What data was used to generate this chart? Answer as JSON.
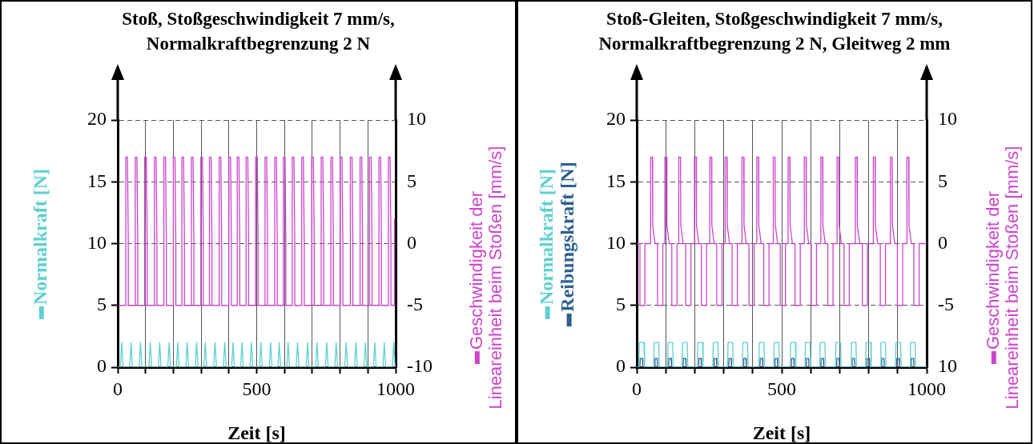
{
  "chart_data": [
    {
      "type": "line",
      "title": "Stoß, Stoßgeschwindigkeit 7 mm/s, Normalkraftbegrenzung 2 N",
      "xlabel": "Zeit [s]",
      "legend": "left",
      "marker": "none",
      "grid": true,
      "xlim": [
        0,
        1000
      ],
      "xticks": [
        0,
        {
          "value": 100,
          "label": null
        },
        {
          "value": 200,
          "label": null
        },
        {
          "value": 300,
          "label": null
        },
        {
          "value": 400,
          "label": null
        },
        500,
        {
          "value": 600,
          "label": null
        },
        {
          "value": 700,
          "label": null
        },
        {
          "value": 800,
          "label": null
        },
        {
          "value": 900,
          "label": null
        },
        1000
      ],
      "ylim": [
        0,
        20
      ],
      "yticks": [
        0,
        5,
        10,
        15,
        20
      ],
      "y2lim": [
        -10,
        10
      ],
      "y2ticks": [
        -10,
        -5,
        0,
        5,
        10
      ],
      "series": [
        {
          "name": "Normalkraft  [N]",
          "color": "#5fd0d0",
          "x": [
            0,
            9,
            14,
            19,
            43,
            48,
            53,
            77,
            82,
            87,
            112,
            117,
            122,
            146,
            151,
            156,
            180,
            185,
            190,
            211,
            216,
            221,
            245,
            250,
            255,
            279,
            284,
            289,
            310,
            315,
            320,
            345,
            350,
            355,
            380,
            385,
            390,
            410,
            415,
            420,
            442,
            447,
            452,
            476,
            481,
            486,
            510,
            515,
            520,
            545,
            550,
            555,
            576,
            581,
            586,
            608,
            613,
            618,
            642,
            647,
            652,
            678,
            683,
            688,
            712,
            717,
            722,
            747,
            752,
            757,
            781,
            786,
            791,
            817,
            822,
            827,
            852,
            857,
            862,
            886,
            891,
            896,
            920,
            925,
            930,
            954,
            959,
            964,
            988,
            993,
            998
          ],
          "values": [
            0,
            0,
            2,
            0,
            0,
            2,
            0,
            0,
            2,
            0,
            0,
            2,
            0,
            0,
            2,
            0,
            0,
            2,
            0,
            0,
            2,
            0,
            0,
            2,
            0,
            0,
            2,
            0,
            0,
            2,
            0,
            0,
            2,
            0,
            0,
            2,
            0,
            0,
            2,
            0,
            0,
            2,
            0,
            0,
            2,
            0,
            0,
            2,
            0,
            0,
            2,
            0,
            0,
            2,
            0,
            0,
            2,
            0,
            0,
            2,
            0,
            0,
            2,
            0,
            0,
            2,
            0,
            0,
            2,
            0,
            0,
            2,
            0,
            0,
            2,
            0,
            0,
            2,
            0,
            0,
            2,
            0,
            0,
            2,
            0,
            0,
            2,
            0,
            0,
            2,
            0
          ]
        },
        {
          "name": "Geschwindigkeit der Lineareinheit beim Stoßen [mm/s]",
          "color": "#cc44cc",
          "axis": "y2",
          "x": [
            3,
            29,
            29,
            35,
            38,
            38,
            63,
            63,
            69,
            72,
            72,
            97,
            97,
            103,
            106,
            106,
            132,
            132,
            138,
            141,
            141,
            166,
            166,
            172,
            175,
            175,
            200,
            200,
            206,
            209,
            209,
            231,
            231,
            237,
            240,
            240,
            265,
            265,
            271,
            274,
            274,
            299,
            299,
            305,
            308,
            308,
            330,
            330,
            336,
            339,
            339,
            365,
            365,
            371,
            374,
            374,
            400,
            400,
            406,
            409,
            409,
            430,
            430,
            436,
            439,
            439,
            462,
            462,
            468,
            471,
            471,
            496,
            496,
            502,
            505,
            505,
            530,
            530,
            536,
            539,
            539,
            565,
            565,
            571,
            574,
            574,
            596,
            596,
            602,
            605,
            605,
            628,
            628,
            634,
            637,
            637,
            662,
            662,
            668,
            671,
            671,
            698,
            698,
            704,
            707,
            707,
            732,
            732,
            738,
            741,
            741,
            767,
            767,
            773,
            776,
            776,
            801,
            801,
            807,
            810,
            810,
            837,
            837,
            843,
            846,
            846,
            872,
            872,
            878,
            881,
            881,
            906,
            906,
            912,
            915,
            915,
            940,
            940,
            946,
            949,
            949,
            974,
            974,
            980,
            983,
            983,
            996,
            996
          ],
          "values": [
            -5,
            -5,
            7,
            7,
            0,
            -5,
            -5,
            7,
            7,
            0,
            -5,
            -5,
            7,
            7,
            0,
            -5,
            -5,
            7,
            7,
            0,
            -5,
            -5,
            7,
            7,
            0,
            -5,
            -5,
            7,
            7,
            0,
            -5,
            -5,
            7,
            7,
            0,
            -5,
            -5,
            7,
            7,
            0,
            -5,
            -5,
            7,
            7,
            0,
            -5,
            -5,
            7,
            7,
            0,
            -5,
            -5,
            7,
            7,
            0,
            -5,
            -5,
            7,
            7,
            0,
            -5,
            -5,
            7,
            7,
            0,
            -5,
            -5,
            7,
            7,
            0,
            -5,
            -5,
            7,
            7,
            0,
            -5,
            -5,
            7,
            7,
            0,
            -5,
            -5,
            7,
            7,
            0,
            -5,
            -5,
            7,
            7,
            0,
            -5,
            -5,
            7,
            7,
            0,
            -5,
            -5,
            7,
            7,
            0,
            -5,
            -5,
            7,
            7,
            0,
            -5,
            -5,
            7,
            7,
            0,
            -5,
            -5,
            7,
            7,
            0,
            -5,
            -5,
            7,
            7,
            0,
            -5,
            -5,
            7,
            7,
            0,
            -5,
            -5,
            7,
            7,
            0,
            -5,
            -5,
            7,
            7,
            0,
            -5,
            -5,
            7,
            7,
            0,
            -5,
            -5,
            7,
            7,
            0,
            -5,
            -5,
            2
          ]
        }
      ]
    },
    {
      "type": "line",
      "title": "Stoß-Gleiten, Stoßgeschwindigkeit 7 mm/s, Normalkraftbegrenzung 2 N, Gleitweg 2 mm",
      "xlabel": "Zeit [s]",
      "legend": "left",
      "marker": "none",
      "grid": true,
      "xlim": [
        0,
        1000
      ],
      "xticks": [
        0,
        {
          "value": 100,
          "label": null
        },
        {
          "value": 200,
          "label": null
        },
        {
          "value": 300,
          "label": null
        },
        {
          "value": 400,
          "label": null
        },
        500,
        {
          "value": 600,
          "label": null
        },
        {
          "value": 700,
          "label": null
        },
        {
          "value": 800,
          "label": null
        },
        {
          "value": 900,
          "label": null
        },
        1000
      ],
      "ylim": [
        0,
        20
      ],
      "yticks": [
        0,
        5,
        10,
        15,
        20
      ],
      "y2lim": [
        -10,
        10
      ],
      "y2ticks": [
        {
          "value": -10,
          "label": "10"
        },
        -5,
        0,
        5,
        10
      ],
      "series": [
        {
          "name": "Normalkraft [N]",
          "color": "#5fd0d0",
          "x": [
            0,
            7,
            9,
            25,
            27,
            58,
            60,
            76,
            78,
            106,
            108,
            124,
            126,
            156,
            158,
            174,
            176,
            209,
            211,
            227,
            229,
            262,
            264,
            280,
            282,
            313,
            315,
            331,
            333,
            364,
            366,
            382,
            384,
            421,
            423,
            439,
            441,
            472,
            474,
            490,
            492,
            529,
            531,
            547,
            549,
            580,
            582,
            598,
            600,
            631,
            633,
            649,
            651,
            685,
            687,
            703,
            705,
            738,
            740,
            756,
            758,
            789,
            791,
            807,
            809,
            840,
            842,
            858,
            860,
            892,
            894,
            910,
            912,
            942,
            944,
            960,
            962,
            1000
          ],
          "values": [
            0,
            0,
            2,
            2,
            0,
            0,
            2,
            2,
            0,
            0,
            2,
            2,
            0,
            0,
            2,
            2,
            0,
            0,
            2,
            2,
            0,
            0,
            2,
            2,
            0,
            0,
            2,
            2,
            0,
            0,
            2,
            2,
            0,
            0,
            2,
            2,
            0,
            0,
            2,
            2,
            0,
            0,
            2,
            2,
            0,
            0,
            2,
            2,
            0,
            0,
            2,
            2,
            0,
            0,
            2,
            2,
            0,
            0,
            2,
            2,
            0,
            0,
            2,
            2,
            0,
            0,
            2,
            2,
            0,
            0,
            2,
            2,
            0,
            0,
            2,
            2,
            0,
            0
          ]
        },
        {
          "name": "Reibungskraft [N]",
          "color": "#2c5f8f",
          "x": [
            0,
            11,
            12,
            20,
            21,
            62,
            63,
            71,
            72,
            110,
            111,
            119,
            120,
            160,
            161,
            169,
            170,
            213,
            214,
            222,
            223,
            266,
            267,
            275,
            276,
            317,
            318,
            326,
            327,
            368,
            369,
            377,
            378,
            425,
            426,
            434,
            435,
            476,
            477,
            485,
            486,
            533,
            534,
            542,
            543,
            584,
            585,
            593,
            594,
            635,
            636,
            644,
            645,
            689,
            690,
            698,
            699,
            742,
            743,
            751,
            752,
            793,
            794,
            802,
            803,
            844,
            845,
            853,
            854,
            896,
            897,
            905,
            906,
            946,
            947,
            955,
            956,
            1000
          ],
          "values": [
            0,
            0,
            0.7,
            0.7,
            0,
            0,
            0.7,
            0.7,
            0,
            0,
            0.7,
            0.7,
            0,
            0,
            0.7,
            0.7,
            0,
            0,
            0.7,
            0.7,
            0,
            0,
            0.7,
            0.7,
            0,
            0,
            0.7,
            0.7,
            0,
            0,
            0.7,
            0.7,
            0,
            0,
            0.7,
            0.7,
            0,
            0,
            0.7,
            0.7,
            0,
            0,
            0.7,
            0.7,
            0,
            0,
            0.7,
            0.7,
            0,
            0,
            0.7,
            0.7,
            0,
            0,
            0.7,
            0.7,
            0,
            0,
            0.7,
            0.7,
            0,
            0,
            0.7,
            0.7,
            0,
            0,
            0.7,
            0.7,
            0,
            0,
            0.7,
            0.7,
            0,
            0,
            0.7,
            0.7,
            0,
            0
          ]
        },
        {
          "name": "Geschwindigkeit der Lineareinheit beim Stoßen [mm/s]",
          "color": "#cc44cc",
          "axis": "y2",
          "x": [
            0,
            11,
            11,
            28,
            28,
            48,
            48,
            54,
            55,
            63,
            72,
            72,
            90,
            90,
            97,
            97,
            103,
            104,
            112,
            121,
            121,
            139,
            139,
            145,
            145,
            151,
            152,
            160,
            169,
            169,
            187,
            187,
            199,
            199,
            205,
            206,
            214,
            223,
            223,
            241,
            241,
            252,
            252,
            258,
            259,
            267,
            276,
            276,
            294,
            294,
            305,
            305,
            311,
            312,
            320,
            329,
            329,
            347,
            347,
            363,
            363,
            369,
            370,
            378,
            387,
            387,
            405,
            405,
            414,
            414,
            420,
            421,
            429,
            438,
            438,
            456,
            456,
            471,
            471,
            477,
            478,
            486,
            495,
            495,
            513,
            513,
            522,
            522,
            528,
            529,
            537,
            546,
            546,
            564,
            564,
            578,
            578,
            584,
            585,
            593,
            602,
            602,
            620,
            620,
            635,
            635,
            641,
            642,
            650,
            659,
            659,
            677,
            677,
            691,
            691,
            697,
            698,
            706,
            715,
            715,
            733,
            733,
            754,
            754,
            760,
            761,
            769,
            778,
            778,
            796,
            796,
            816,
            816,
            822,
            823,
            831,
            840,
            840,
            858,
            858,
            875,
            875,
            881,
            882,
            890,
            899,
            899,
            917,
            917,
            932,
            932,
            938,
            939,
            947,
            956,
            956,
            974,
            974,
            1000
          ],
          "values": [
            0,
            0,
            -5,
            -5,
            0,
            0,
            7,
            7,
            1.5,
            0,
            0,
            -5,
            -5,
            0,
            0,
            7,
            7,
            1.5,
            0,
            0,
            -5,
            -5,
            0,
            0,
            7,
            7,
            1.5,
            0,
            0,
            -5,
            -5,
            0,
            0,
            7,
            7,
            1.5,
            0,
            0,
            -5,
            -5,
            0,
            0,
            7,
            7,
            1.5,
            0,
            0,
            -5,
            -5,
            0,
            0,
            7,
            7,
            1.5,
            0,
            0,
            -5,
            -5,
            0,
            0,
            7,
            7,
            1.5,
            0,
            0,
            -5,
            -5,
            0,
            0,
            7,
            7,
            1.5,
            0,
            0,
            -5,
            -5,
            0,
            0,
            7,
            7,
            1.5,
            0,
            0,
            -5,
            -5,
            0,
            0,
            7,
            7,
            1.5,
            0,
            0,
            -5,
            -5,
            0,
            0,
            7,
            7,
            1.5,
            0,
            0,
            -5,
            -5,
            0,
            0,
            7,
            7,
            1.5,
            0,
            0,
            -5,
            -5,
            0,
            0,
            7,
            7,
            1.5,
            0,
            0,
            -5,
            -5,
            0,
            0,
            7,
            7,
            1.5,
            0,
            0,
            -5,
            -5,
            0,
            0,
            7,
            7,
            1.5,
            0,
            0,
            -5,
            -5,
            0,
            0,
            7,
            7,
            1.5,
            0,
            0,
            -5,
            -5,
            0,
            0,
            7,
            7,
            1.5,
            0,
            0,
            -5,
            -5,
            0,
            0
          ]
        }
      ]
    }
  ]
}
